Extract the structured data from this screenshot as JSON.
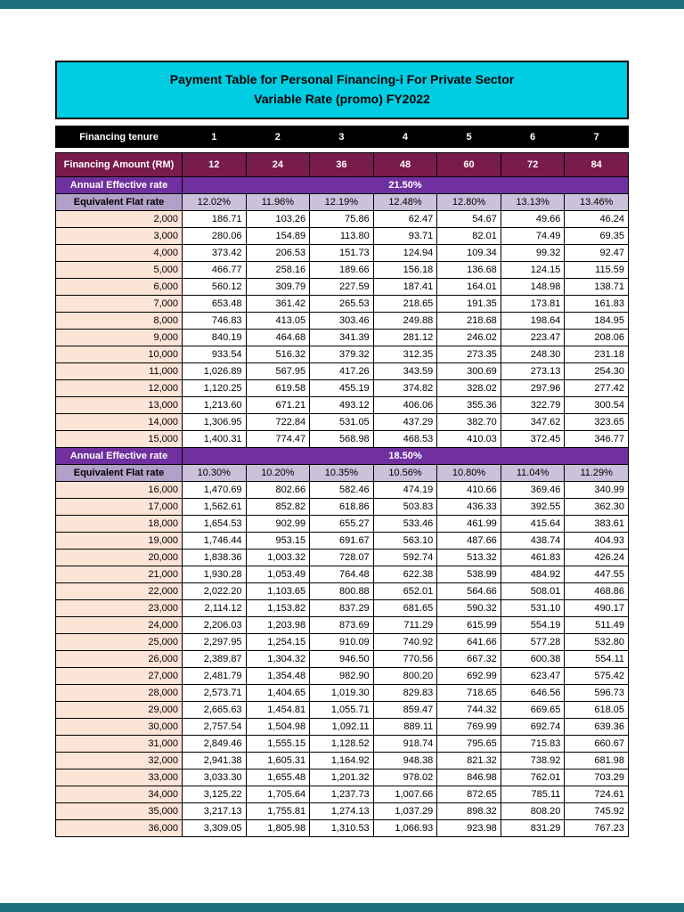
{
  "page": {
    "title_line1": "Payment Table for Personal Financing-i For Private Sector",
    "title_line2": "Variable Rate (promo) FY2022"
  },
  "colors": {
    "teal_strip": "#1a6e7e",
    "title_bg": "#00cde2",
    "tenure_row_bg": "#000000",
    "amount_row_bg": "#7a1b4d",
    "effective_rate_bg": "#7030a0",
    "flat_label_bg": "#b1a0c7",
    "flat_value_bg": "#ccc0da",
    "amount_col_bg": "#fce4d6"
  },
  "table": {
    "tenure_label": "Financing tenure",
    "tenure_values": [
      "1",
      "2",
      "3",
      "4",
      "5",
      "6",
      "7"
    ],
    "amount_label": "Financing Amount (RM)",
    "amount_values": [
      "12",
      "24",
      "36",
      "48",
      "60",
      "72",
      "84"
    ],
    "sections": [
      {
        "effective_rate_label": "Annual Effective rate",
        "effective_rate": "21.50%",
        "flat_rate_label": "Equivalent Flat rate",
        "flat_rates": [
          "12.02%",
          "11.96%",
          "12.19%",
          "12.48%",
          "12.80%",
          "13.13%",
          "13.46%"
        ],
        "rows": [
          {
            "amount": "2,000",
            "values": [
              "186.71",
              "103.26",
              "75.86",
              "62.47",
              "54.67",
              "49.66",
              "46.24"
            ]
          },
          {
            "amount": "3,000",
            "values": [
              "280.06",
              "154.89",
              "113.80",
              "93.71",
              "82.01",
              "74.49",
              "69.35"
            ]
          },
          {
            "amount": "4,000",
            "values": [
              "373.42",
              "206.53",
              "151.73",
              "124.94",
              "109.34",
              "99.32",
              "92.47"
            ]
          },
          {
            "amount": "5,000",
            "values": [
              "466.77",
              "258.16",
              "189.66",
              "156.18",
              "136.68",
              "124.15",
              "115.59"
            ]
          },
          {
            "amount": "6,000",
            "values": [
              "560.12",
              "309.79",
              "227.59",
              "187.41",
              "164.01",
              "148.98",
              "138.71"
            ]
          },
          {
            "amount": "7,000",
            "values": [
              "653.48",
              "361.42",
              "265.53",
              "218.65",
              "191.35",
              "173.81",
              "161.83"
            ]
          },
          {
            "amount": "8,000",
            "values": [
              "746.83",
              "413.05",
              "303.46",
              "249.88",
              "218.68",
              "198.64",
              "184.95"
            ]
          },
          {
            "amount": "9,000",
            "values": [
              "840.19",
              "464.68",
              "341.39",
              "281.12",
              "246.02",
              "223.47",
              "208.06"
            ]
          },
          {
            "amount": "10,000",
            "values": [
              "933.54",
              "516.32",
              "379.32",
              "312.35",
              "273.35",
              "248.30",
              "231.18"
            ]
          },
          {
            "amount": "11,000",
            "values": [
              "1,026.89",
              "567.95",
              "417.26",
              "343.59",
              "300.69",
              "273.13",
              "254.30"
            ]
          },
          {
            "amount": "12,000",
            "values": [
              "1,120.25",
              "619.58",
              "455.19",
              "374.82",
              "328.02",
              "297.96",
              "277.42"
            ]
          },
          {
            "amount": "13,000",
            "values": [
              "1,213.60",
              "671.21",
              "493.12",
              "406.06",
              "355.36",
              "322.79",
              "300.54"
            ]
          },
          {
            "amount": "14,000",
            "values": [
              "1,306.95",
              "722.84",
              "531.05",
              "437.29",
              "382.70",
              "347.62",
              "323.65"
            ]
          },
          {
            "amount": "15,000",
            "values": [
              "1,400.31",
              "774.47",
              "568.98",
              "468.53",
              "410.03",
              "372.45",
              "346.77"
            ]
          }
        ]
      },
      {
        "effective_rate_label": "Annual Effective rate",
        "effective_rate": "18.50%",
        "flat_rate_label": "Equivalent Flat rate",
        "flat_rates": [
          "10.30%",
          "10.20%",
          "10.35%",
          "10.56%",
          "10.80%",
          "11.04%",
          "11.29%"
        ],
        "rows": [
          {
            "amount": "16,000",
            "values": [
              "1,470.69",
              "802.66",
              "582.46",
              "474.19",
              "410.66",
              "369.46",
              "340.99"
            ]
          },
          {
            "amount": "17,000",
            "values": [
              "1,562.61",
              "852.82",
              "618.86",
              "503.83",
              "436.33",
              "392.55",
              "362.30"
            ]
          },
          {
            "amount": "18,000",
            "values": [
              "1,654.53",
              "902.99",
              "655.27",
              "533.46",
              "461.99",
              "415.64",
              "383.61"
            ]
          },
          {
            "amount": "19,000",
            "values": [
              "1,746.44",
              "953.15",
              "691.67",
              "563.10",
              "487.66",
              "438.74",
              "404.93"
            ]
          },
          {
            "amount": "20,000",
            "values": [
              "1,838.36",
              "1,003.32",
              "728.07",
              "592.74",
              "513.32",
              "461.83",
              "426.24"
            ]
          },
          {
            "amount": "21,000",
            "values": [
              "1,930.28",
              "1,053.49",
              "764.48",
              "622.38",
              "538.99",
              "484.92",
              "447.55"
            ]
          },
          {
            "amount": "22,000",
            "values": [
              "2,022.20",
              "1,103.65",
              "800.88",
              "652.01",
              "564.66",
              "508.01",
              "468.86"
            ]
          },
          {
            "amount": "23,000",
            "values": [
              "2,114.12",
              "1,153.82",
              "837.29",
              "681.65",
              "590.32",
              "531.10",
              "490.17"
            ]
          },
          {
            "amount": "24,000",
            "values": [
              "2,206.03",
              "1,203.98",
              "873.69",
              "711.29",
              "615.99",
              "554.19",
              "511.49"
            ]
          },
          {
            "amount": "25,000",
            "values": [
              "2,297.95",
              "1,254.15",
              "910.09",
              "740.92",
              "641.66",
              "577.28",
              "532.80"
            ]
          },
          {
            "amount": "26,000",
            "values": [
              "2,389.87",
              "1,304.32",
              "946.50",
              "770.56",
              "667.32",
              "600.38",
              "554.11"
            ]
          },
          {
            "amount": "27,000",
            "values": [
              "2,481.79",
              "1,354.48",
              "982.90",
              "800.20",
              "692.99",
              "623.47",
              "575.42"
            ]
          },
          {
            "amount": "28,000",
            "values": [
              "2,573.71",
              "1,404.65",
              "1,019.30",
              "829.83",
              "718.65",
              "646.56",
              "596.73"
            ]
          },
          {
            "amount": "29,000",
            "values": [
              "2,665.63",
              "1,454.81",
              "1,055.71",
              "859.47",
              "744.32",
              "669.65",
              "618.05"
            ]
          },
          {
            "amount": "30,000",
            "values": [
              "2,757.54",
              "1,504.98",
              "1,092.11",
              "889.11",
              "769.99",
              "692.74",
              "639.36"
            ]
          },
          {
            "amount": "31,000",
            "values": [
              "2,849.46",
              "1,555.15",
              "1,128.52",
              "918.74",
              "795.65",
              "715.83",
              "660.67"
            ]
          },
          {
            "amount": "32,000",
            "values": [
              "2,941.38",
              "1,605.31",
              "1,164.92",
              "948.38",
              "821.32",
              "738.92",
              "681.98"
            ]
          },
          {
            "amount": "33,000",
            "values": [
              "3,033.30",
              "1,655.48",
              "1,201.32",
              "978.02",
              "846.98",
              "762.01",
              "703.29"
            ]
          },
          {
            "amount": "34,000",
            "values": [
              "3,125.22",
              "1,705.64",
              "1,237.73",
              "1,007.66",
              "872.65",
              "785.11",
              "724.61"
            ]
          },
          {
            "amount": "35,000",
            "values": [
              "3,217.13",
              "1,755.81",
              "1,274.13",
              "1,037.29",
              "898.32",
              "808.20",
              "745.92"
            ]
          },
          {
            "amount": "36,000",
            "values": [
              "3,309.05",
              "1,805.98",
              "1,310.53",
              "1,066.93",
              "923.98",
              "831.29",
              "767.23"
            ]
          }
        ]
      }
    ]
  }
}
